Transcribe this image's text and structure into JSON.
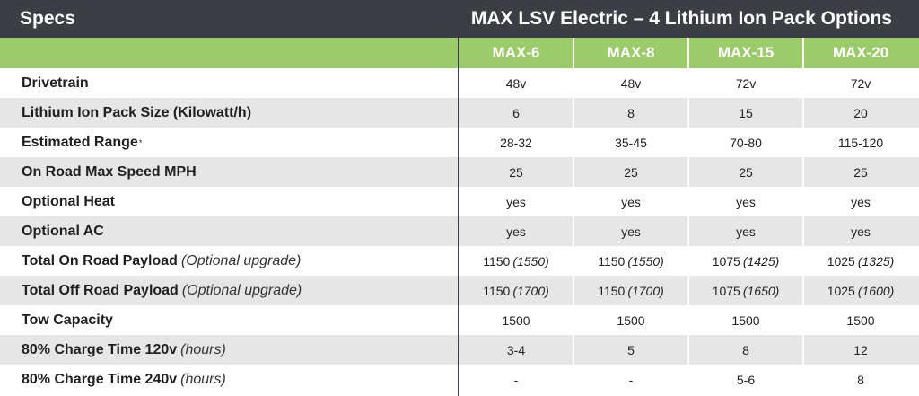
{
  "header": {
    "left": "Specs",
    "right": "MAX LSV Electric – 4 Lithium Ion Pack Options"
  },
  "colors": {
    "header_bg": "#3b3f44",
    "column_header_bg": "#9ccb6a",
    "row_alt_bg": "#e6e6e6"
  },
  "columns": [
    "MAX-6",
    "MAX-8",
    "MAX-15",
    "MAX-20"
  ],
  "rows": [
    {
      "label": "Drivetrain",
      "values": [
        "48v",
        "48v",
        "72v",
        "72v"
      ]
    },
    {
      "label": "Lithium Ion Pack Size (Kilowatt/h)",
      "values": [
        "6",
        "8",
        "15",
        "20"
      ]
    },
    {
      "label": "Estimated Range",
      "footnote": "*",
      "values": [
        "28-32",
        "35-45",
        "70-80",
        "115-120"
      ]
    },
    {
      "label": "On Road Max Speed MPH",
      "values": [
        "25",
        "25",
        "25",
        "25"
      ]
    },
    {
      "label": "Optional Heat",
      "values": [
        "yes",
        "yes",
        "yes",
        "yes"
      ]
    },
    {
      "label": "Optional AC",
      "values": [
        "yes",
        "yes",
        "yes",
        "yes"
      ]
    },
    {
      "label": "Total On Road Payload",
      "note": "(Optional upgrade)",
      "values": [
        "1150",
        "1150",
        "1075",
        "1025"
      ],
      "extras": [
        "(1550)",
        "(1550)",
        "(1425)",
        "(1325)"
      ]
    },
    {
      "label": "Total Off Road Payload",
      "note": "(Optional upgrade)",
      "values": [
        "1150",
        "1150",
        "1075",
        "1025"
      ],
      "extras": [
        "(1700)",
        "(1700)",
        "(1650)",
        "(1600)"
      ]
    },
    {
      "label": "Tow Capacity",
      "values": [
        "1500",
        "1500",
        "1500",
        "1500"
      ]
    },
    {
      "label": "80% Charge Time 120v",
      "note": "(hours)",
      "values": [
        "3-4",
        "5",
        "8",
        "12"
      ]
    },
    {
      "label": "80% Charge Time 240v",
      "note": "(hours)",
      "values": [
        "-",
        "-",
        "5-6",
        "8"
      ]
    }
  ]
}
